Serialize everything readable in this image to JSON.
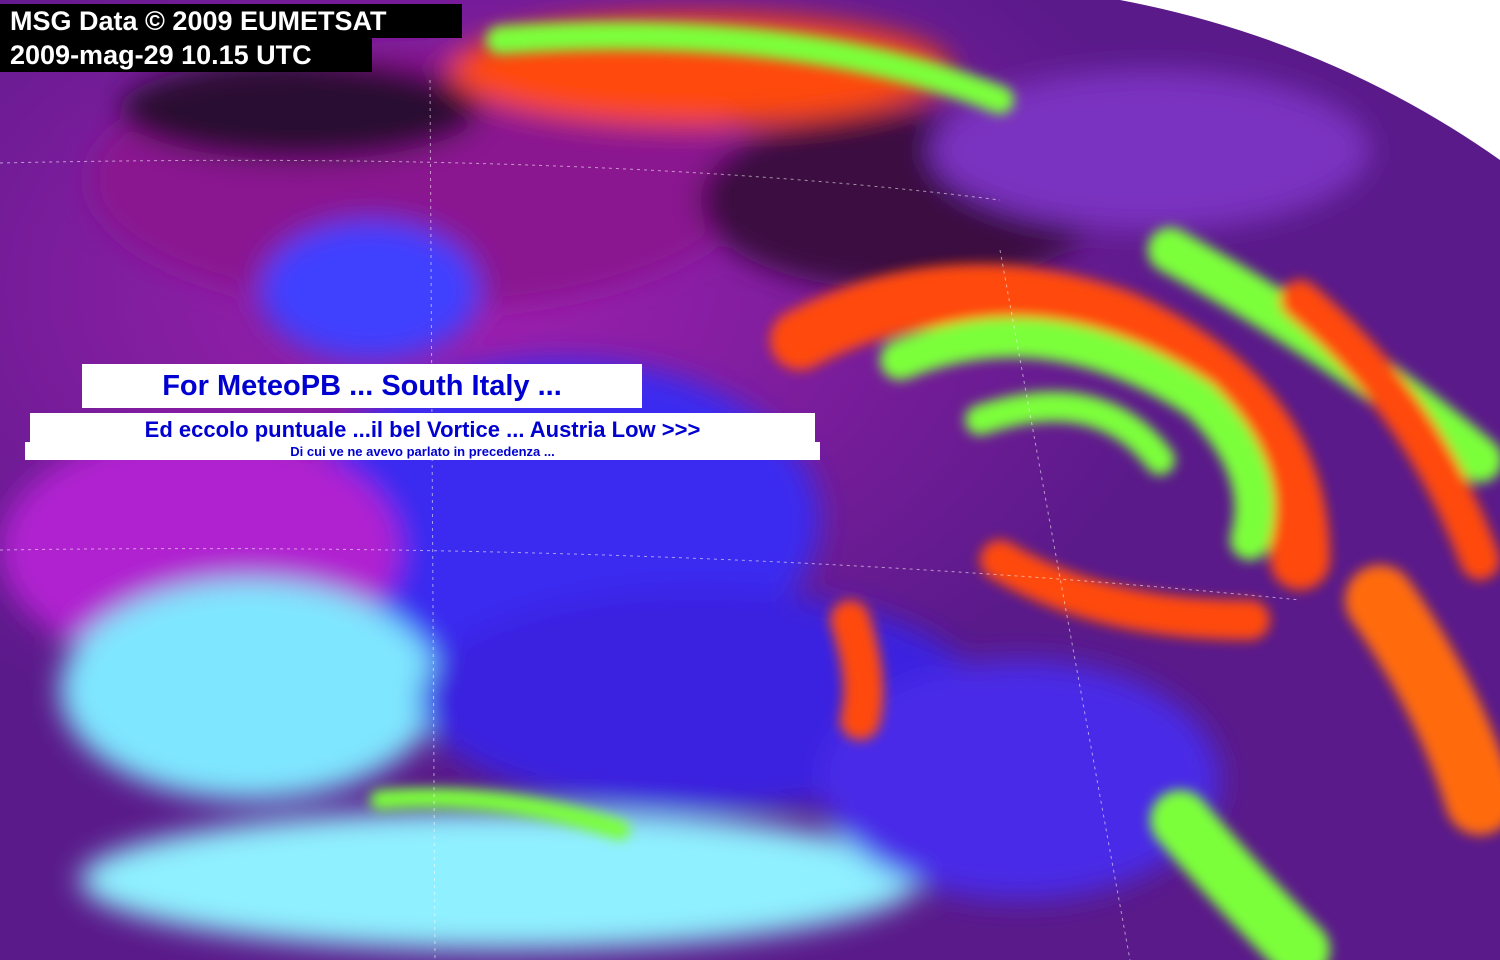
{
  "caption": {
    "copyright": "MSG Data © 2009 EUMETSAT",
    "timestamp": "2009-mag-29 10.15 UTC"
  },
  "annotation": {
    "title": "For MeteoPB ... South Italy ...",
    "headline": "Ed eccolo puntuale ...il bel Vortice ... Austria Low >>>",
    "subline": "Di cui ve ne avevo parlato in precedenza ..."
  },
  "colors": {
    "annotation_text": "#0000d0",
    "sea": "#5a1a8a",
    "land_clear": "#3a3aff",
    "cold_land": "#7fe6ff",
    "cloud_high": "#7cff3a",
    "cloud_mid": "#ff4a10"
  }
}
